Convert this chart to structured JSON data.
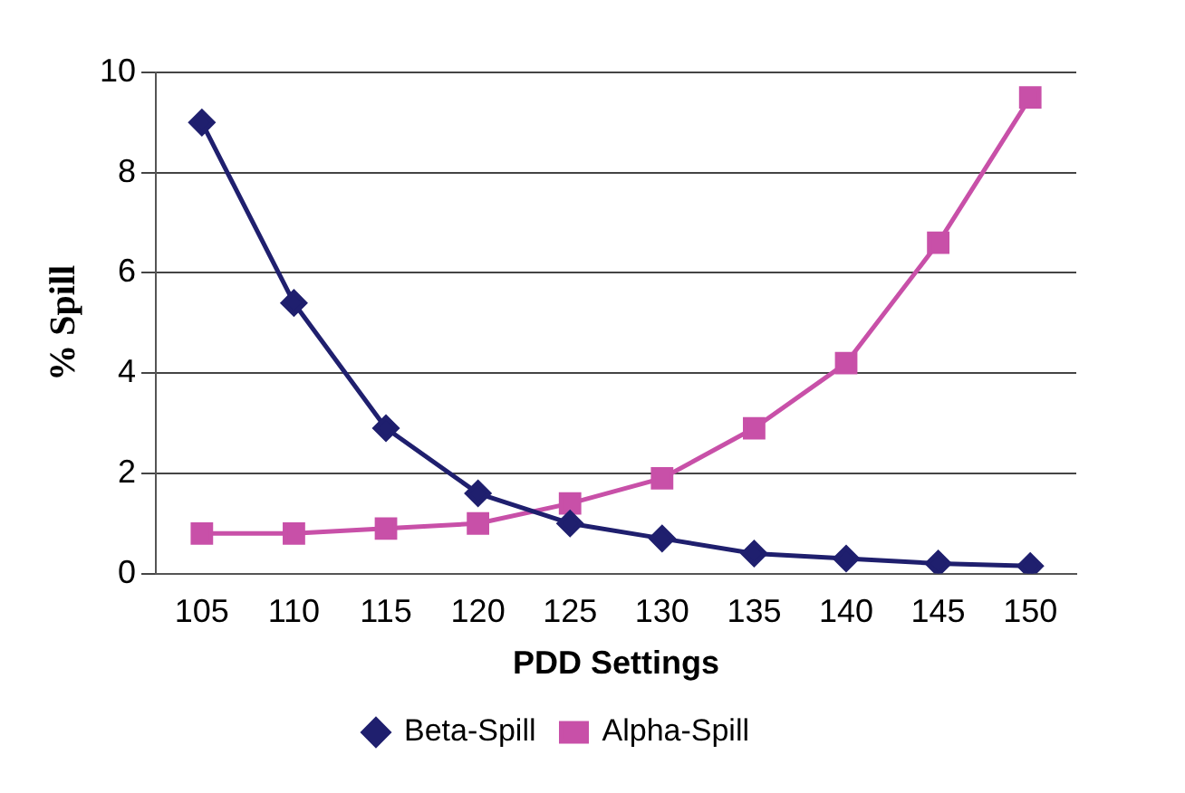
{
  "chart_data": {
    "type": "line",
    "xlabel": "PDD Settings",
    "ylabel": "% Spill",
    "categories": [
      "105",
      "110",
      "115",
      "120",
      "125",
      "130",
      "135",
      "140",
      "145",
      "150"
    ],
    "series": [
      {
        "name": "Beta-Spill",
        "color": "#1f1f6e",
        "marker": "diamond",
        "values": [
          9.0,
          5.4,
          2.9,
          1.6,
          1.0,
          0.7,
          0.4,
          0.3,
          0.2,
          0.15
        ]
      },
      {
        "name": "Alpha-Spill",
        "color": "#c850a8",
        "marker": "square",
        "values": [
          0.8,
          0.8,
          0.9,
          1.0,
          1.4,
          1.9,
          2.9,
          4.2,
          6.6,
          9.5
        ]
      }
    ],
    "ylim": [
      0,
      10
    ],
    "yticks": [
      0,
      2,
      4,
      6,
      8,
      10
    ],
    "grid": "y",
    "legend": "bottom",
    "line_style": "solid"
  }
}
